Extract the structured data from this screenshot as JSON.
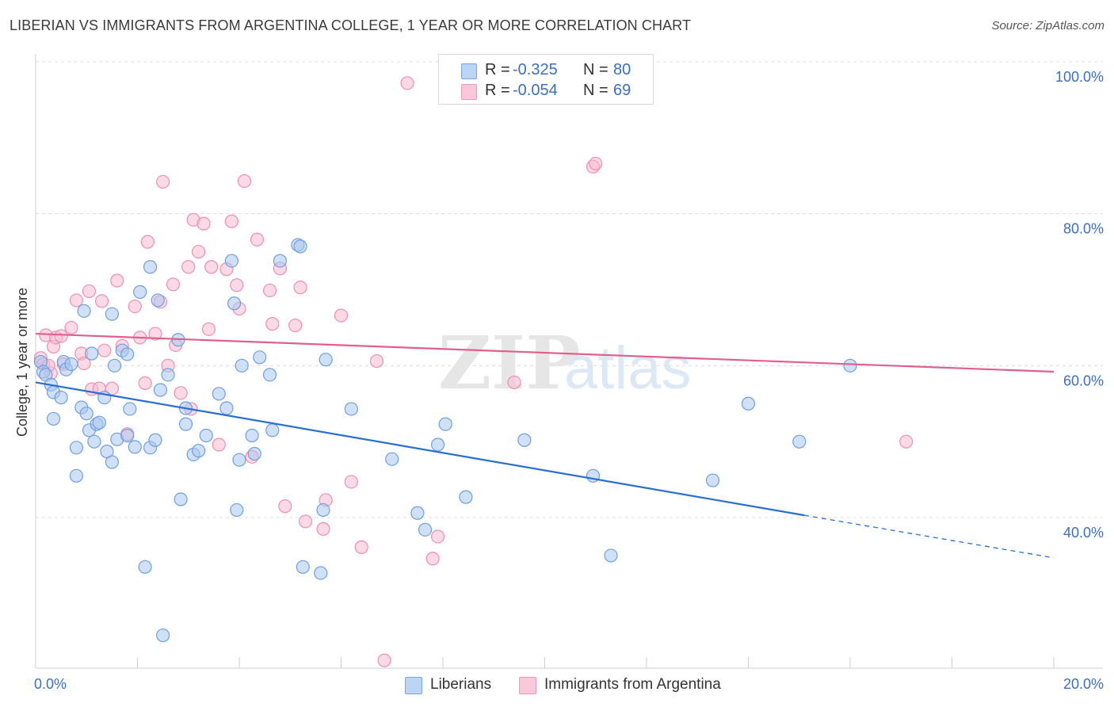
{
  "header": {
    "title": "LIBERIAN VS IMMIGRANTS FROM ARGENTINA COLLEGE, 1 YEAR OR MORE CORRELATION CHART",
    "source": "Source: ZipAtlas.com"
  },
  "watermark": {
    "zip": "ZIP",
    "atlas": "atlas"
  },
  "legend": {
    "rows": [
      {
        "r_label": "R =",
        "r_value": "-0.325",
        "n_label": "N =",
        "n_value": "80"
      },
      {
        "r_label": "R =",
        "r_value": "-0.054",
        "n_label": "N =",
        "n_value": "69"
      }
    ]
  },
  "bottom_legend": {
    "items": [
      "Liberians",
      "Immigrants from Argentina"
    ]
  },
  "colors": {
    "blue_fill": "#a9c8f0",
    "blue_stroke": "#6d9fe0",
    "blue_line": "#2a6fd0",
    "pink_fill": "#f7bcd0",
    "pink_stroke": "#ee8fb0",
    "pink_line": "#e0608d",
    "axis_text": "#3a6fc4"
  },
  "chart_data": {
    "type": "scatter",
    "title": "LIBERIAN VS IMMIGRANTS FROM ARGENTINA COLLEGE, 1 YEAR OR MORE CORRELATION CHART",
    "xlabel": "",
    "ylabel": "College, 1 year or more",
    "xlim": [
      0,
      20
    ],
    "ylim": [
      20,
      102
    ],
    "x_tick_labels": [
      "0.0%",
      "20.0%"
    ],
    "y_ticks": [
      40,
      60,
      80,
      100
    ],
    "y_tick_labels": [
      "40.0%",
      "60.0%",
      "80.0%",
      "100.0%"
    ],
    "grid": true,
    "series": [
      {
        "name": "Liberians",
        "color": "#a9c8f0",
        "r": -0.325,
        "n": 80,
        "trend": {
          "x0": 0,
          "y0": 57.8,
          "x1": 15.1,
          "y1": 40.3,
          "dash_to_x": 20,
          "dash_to_y": 34.7
        },
        "points": [
          [
            0.1,
            60.5
          ],
          [
            0.15,
            59.2
          ],
          [
            0.2,
            58.8
          ],
          [
            0.3,
            57.5
          ],
          [
            0.35,
            56.5
          ],
          [
            0.35,
            53.0
          ],
          [
            0.5,
            55.8
          ],
          [
            0.55,
            60.5
          ],
          [
            0.6,
            59.5
          ],
          [
            0.7,
            60.2
          ],
          [
            0.8,
            49.2
          ],
          [
            0.8,
            45.5
          ],
          [
            0.9,
            54.5
          ],
          [
            0.95,
            67.2
          ],
          [
            1.0,
            53.7
          ],
          [
            1.05,
            51.5
          ],
          [
            1.1,
            61.6
          ],
          [
            1.15,
            50.0
          ],
          [
            1.2,
            52.3
          ],
          [
            1.25,
            52.5
          ],
          [
            1.35,
            55.8
          ],
          [
            1.4,
            48.7
          ],
          [
            1.5,
            66.8
          ],
          [
            1.5,
            47.3
          ],
          [
            1.55,
            60.0
          ],
          [
            1.6,
            50.3
          ],
          [
            1.7,
            62.0
          ],
          [
            1.8,
            61.5
          ],
          [
            1.8,
            50.8
          ],
          [
            1.85,
            54.3
          ],
          [
            1.95,
            49.3
          ],
          [
            2.05,
            69.7
          ],
          [
            2.15,
            33.5
          ],
          [
            2.25,
            49.2
          ],
          [
            2.25,
            73.0
          ],
          [
            2.35,
            50.2
          ],
          [
            2.4,
            68.6
          ],
          [
            2.45,
            56.8
          ],
          [
            2.5,
            24.5
          ],
          [
            2.6,
            58.8
          ],
          [
            2.8,
            63.4
          ],
          [
            2.85,
            42.4
          ],
          [
            2.95,
            52.3
          ],
          [
            2.95,
            54.4
          ],
          [
            3.1,
            48.3
          ],
          [
            3.2,
            48.8
          ],
          [
            3.35,
            50.8
          ],
          [
            3.6,
            56.3
          ],
          [
            3.75,
            54.4
          ],
          [
            3.85,
            73.8
          ],
          [
            3.9,
            68.2
          ],
          [
            3.95,
            41.0
          ],
          [
            4.0,
            47.6
          ],
          [
            4.05,
            60.0
          ],
          [
            4.25,
            50.8
          ],
          [
            4.3,
            48.4
          ],
          [
            4.4,
            61.1
          ],
          [
            4.6,
            58.8
          ],
          [
            4.65,
            51.5
          ],
          [
            4.8,
            73.8
          ],
          [
            5.15,
            75.9
          ],
          [
            5.2,
            75.7
          ],
          [
            5.25,
            33.5
          ],
          [
            5.6,
            32.7
          ],
          [
            5.65,
            41.0
          ],
          [
            5.7,
            60.8
          ],
          [
            6.2,
            54.3
          ],
          [
            7.0,
            47.7
          ],
          [
            7.5,
            40.6
          ],
          [
            7.65,
            38.4
          ],
          [
            7.9,
            49.6
          ],
          [
            8.05,
            52.3
          ],
          [
            8.45,
            42.7
          ],
          [
            9.6,
            50.2
          ],
          [
            10.95,
            45.5
          ],
          [
            11.3,
            35.0
          ],
          [
            13.3,
            44.9
          ],
          [
            14.0,
            55.0
          ],
          [
            15.0,
            50.0
          ],
          [
            16.0,
            60.0
          ]
        ]
      },
      {
        "name": "Immigrants from Argentina",
        "color": "#f7bcd0",
        "r": -0.054,
        "n": 69,
        "trend": {
          "x0": 0,
          "y0": 64.2,
          "x1": 20,
          "y1": 59.2
        },
        "points": [
          [
            0.1,
            61.0
          ],
          [
            0.15,
            60.2
          ],
          [
            0.2,
            64.0
          ],
          [
            0.3,
            59.0
          ],
          [
            0.35,
            62.5
          ],
          [
            0.4,
            63.7
          ],
          [
            0.5,
            63.9
          ],
          [
            0.55,
            60.2
          ],
          [
            0.7,
            65.0
          ],
          [
            0.8,
            68.6
          ],
          [
            0.9,
            61.6
          ],
          [
            0.95,
            60.3
          ],
          [
            1.05,
            69.8
          ],
          [
            1.1,
            56.9
          ],
          [
            1.25,
            57.0
          ],
          [
            1.3,
            68.5
          ],
          [
            1.35,
            62.0
          ],
          [
            1.5,
            57.0
          ],
          [
            1.6,
            71.2
          ],
          [
            1.7,
            62.6
          ],
          [
            1.8,
            51.0
          ],
          [
            1.95,
            67.8
          ],
          [
            2.05,
            63.7
          ],
          [
            2.15,
            57.7
          ],
          [
            2.2,
            76.3
          ],
          [
            2.35,
            64.2
          ],
          [
            2.45,
            68.4
          ],
          [
            2.5,
            84.2
          ],
          [
            2.6,
            60.0
          ],
          [
            2.7,
            70.7
          ],
          [
            2.75,
            62.7
          ],
          [
            2.85,
            56.4
          ],
          [
            3.0,
            73.0
          ],
          [
            3.05,
            54.3
          ],
          [
            3.1,
            79.2
          ],
          [
            3.2,
            75.0
          ],
          [
            3.3,
            78.7
          ],
          [
            3.4,
            64.8
          ],
          [
            3.45,
            73.0
          ],
          [
            3.6,
            49.6
          ],
          [
            3.75,
            72.7
          ],
          [
            3.85,
            79.0
          ],
          [
            3.95,
            70.6
          ],
          [
            4.0,
            67.5
          ],
          [
            4.1,
            84.3
          ],
          [
            4.25,
            48.0
          ],
          [
            4.35,
            76.6
          ],
          [
            4.6,
            69.9
          ],
          [
            4.65,
            65.5
          ],
          [
            4.8,
            72.8
          ],
          [
            4.9,
            41.5
          ],
          [
            5.1,
            65.3
          ],
          [
            5.2,
            70.3
          ],
          [
            5.3,
            39.5
          ],
          [
            5.65,
            38.5
          ],
          [
            5.7,
            42.3
          ],
          [
            6.0,
            66.6
          ],
          [
            6.2,
            44.7
          ],
          [
            6.4,
            36.1
          ],
          [
            6.7,
            60.6
          ],
          [
            6.85,
            21.2
          ],
          [
            7.3,
            97.2
          ],
          [
            7.8,
            34.6
          ],
          [
            7.9,
            37.5
          ],
          [
            9.4,
            57.8
          ],
          [
            10.95,
            86.2
          ],
          [
            11.0,
            86.6
          ],
          [
            17.1,
            50.0
          ],
          [
            0.25,
            60.0
          ]
        ]
      }
    ]
  }
}
